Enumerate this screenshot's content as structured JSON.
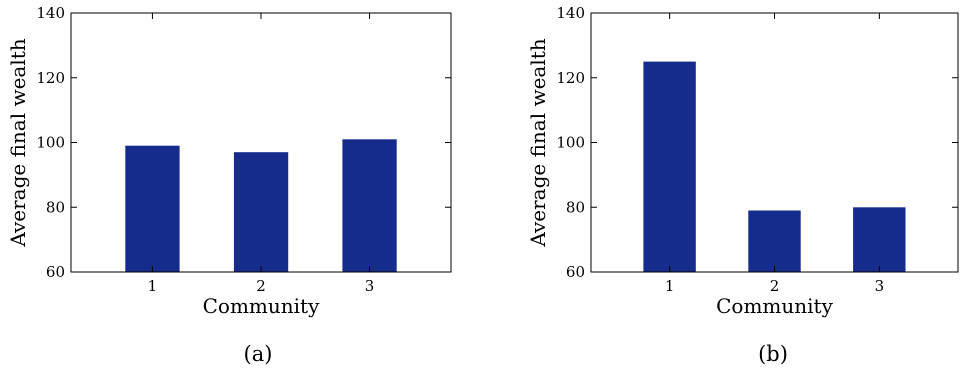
{
  "chart_data": [
    {
      "type": "bar",
      "panel": "(a)",
      "categories": [
        "1",
        "2",
        "3"
      ],
      "values": [
        99,
        97,
        101
      ],
      "xlabel": "Community",
      "ylabel": "Average final wealth",
      "ylim": [
        60,
        140
      ],
      "yticks": [
        60,
        80,
        100,
        120,
        140
      ],
      "color": "#162c8c",
      "grid": false
    },
    {
      "type": "bar",
      "panel": "(b)",
      "categories": [
        "1",
        "2",
        "3"
      ],
      "values": [
        125,
        79,
        80
      ],
      "xlabel": "Community",
      "ylabel": "Average final wealth",
      "ylim": [
        60,
        140
      ],
      "yticks": [
        60,
        80,
        100,
        120,
        140
      ],
      "color": "#162c8c",
      "grid": false
    }
  ]
}
